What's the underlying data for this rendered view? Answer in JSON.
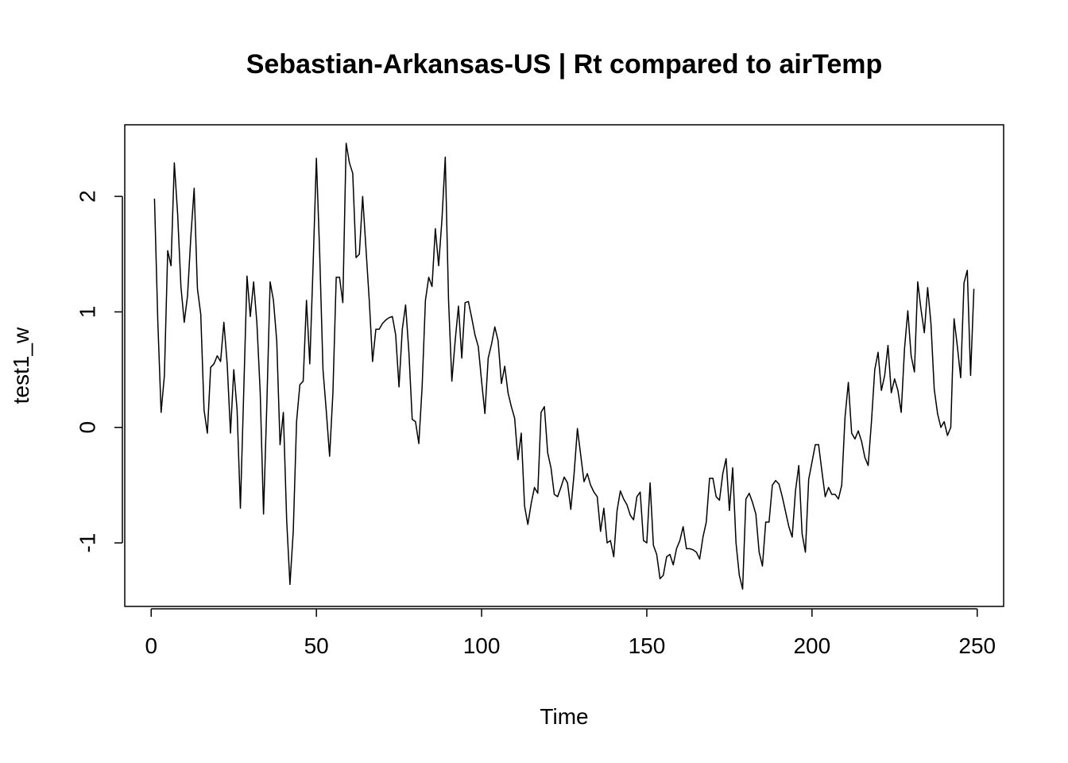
{
  "chart_data": {
    "type": "line",
    "title": "Sebastian-Arkansas-US | Rt compared to airTemp",
    "xlabel": "Time",
    "ylabel": "test1_w",
    "xlim": [
      -8,
      258
    ],
    "ylim": [
      -1.55,
      2.62
    ],
    "x_ticks": [
      0,
      50,
      100,
      150,
      200,
      250
    ],
    "y_ticks": [
      -1,
      0,
      1,
      2
    ],
    "x_tick_labels": [
      "0",
      "50",
      "100",
      "150",
      "200",
      "250"
    ],
    "y_tick_labels": [
      "-1",
      "0",
      "1",
      "2"
    ],
    "grid": false,
    "line_color": "#000000",
    "series": [
      {
        "x_start": 1,
        "x_step": 1,
        "values": [
          1.98,
          0.92,
          0.13,
          0.45,
          1.53,
          1.4,
          2.29,
          1.85,
          1.22,
          0.91,
          1.14,
          1.65,
          2.07,
          1.2,
          0.98,
          0.15,
          -0.05,
          0.52,
          0.55,
          0.62,
          0.57,
          0.91,
          0.55,
          -0.05,
          0.5,
          0.15,
          -0.7,
          0.3,
          1.31,
          0.96,
          1.26,
          0.9,
          0.3,
          -0.75,
          0.2,
          1.26,
          1.1,
          0.75,
          -0.15,
          0.13,
          -0.8,
          -1.36,
          -0.9,
          0.05,
          0.37,
          0.4,
          1.1,
          0.55,
          1.4,
          2.33,
          1.5,
          0.5,
          0.14,
          -0.25,
          0.3,
          1.3,
          1.3,
          1.08,
          2.46,
          2.29,
          2.2,
          1.47,
          1.5,
          2.0,
          1.55,
          1.1,
          0.57,
          0.85,
          0.85,
          0.9,
          0.93,
          0.95,
          0.96,
          0.8,
          0.35,
          0.85,
          1.06,
          0.65,
          0.07,
          0.05,
          -0.14,
          0.35,
          1.1,
          1.3,
          1.22,
          1.72,
          1.4,
          1.8,
          2.34,
          1.1,
          0.4,
          0.75,
          1.05,
          0.6,
          1.08,
          1.09,
          0.95,
          0.8,
          0.7,
          0.4,
          0.12,
          0.6,
          0.72,
          0.87,
          0.75,
          0.38,
          0.53,
          0.3,
          0.18,
          0.08,
          -0.28,
          -0.05,
          -0.68,
          -0.84,
          -0.66,
          -0.52,
          -0.57,
          0.13,
          0.18,
          -0.22,
          -0.35,
          -0.58,
          -0.6,
          -0.52,
          -0.43,
          -0.48,
          -0.71,
          -0.4,
          -0.01,
          -0.24,
          -0.47,
          -0.4,
          -0.5,
          -0.56,
          -0.6,
          -0.9,
          -0.7,
          -1.0,
          -0.98,
          -1.12,
          -0.72,
          -0.55,
          -0.62,
          -0.67,
          -0.76,
          -0.8,
          -0.6,
          -0.56,
          -0.98,
          -1.0,
          -0.48,
          -1.02,
          -1.1,
          -1.31,
          -1.28,
          -1.12,
          -1.1,
          -1.19,
          -1.05,
          -0.98,
          -0.86,
          -1.05,
          -1.05,
          -1.06,
          -1.08,
          -1.14,
          -0.95,
          -0.82,
          -0.44,
          -0.44,
          -0.6,
          -0.63,
          -0.4,
          -0.27,
          -0.72,
          -0.35,
          -1.0,
          -1.28,
          -1.4,
          -0.62,
          -0.57,
          -0.65,
          -0.75,
          -1.08,
          -1.2,
          -0.82,
          -0.82,
          -0.5,
          -0.46,
          -0.49,
          -0.6,
          -0.73,
          -0.86,
          -0.95,
          -0.55,
          -0.33,
          -0.92,
          -1.08,
          -0.45,
          -0.3,
          -0.15,
          -0.15,
          -0.38,
          -0.6,
          -0.52,
          -0.58,
          -0.58,
          -0.62,
          -0.5,
          0.09,
          0.39,
          -0.05,
          -0.1,
          -0.03,
          -0.12,
          -0.26,
          -0.33,
          0.05,
          0.5,
          0.65,
          0.32,
          0.45,
          0.71,
          0.3,
          0.42,
          0.32,
          0.13,
          0.68,
          1.01,
          0.62,
          0.48,
          1.26,
          1.02,
          0.82,
          1.21,
          0.9,
          0.33,
          0.12,
          0.0,
          0.05,
          -0.07,
          0.0,
          0.94,
          0.7,
          0.43,
          1.25,
          1.36,
          0.45,
          1.2
        ]
      }
    ]
  }
}
